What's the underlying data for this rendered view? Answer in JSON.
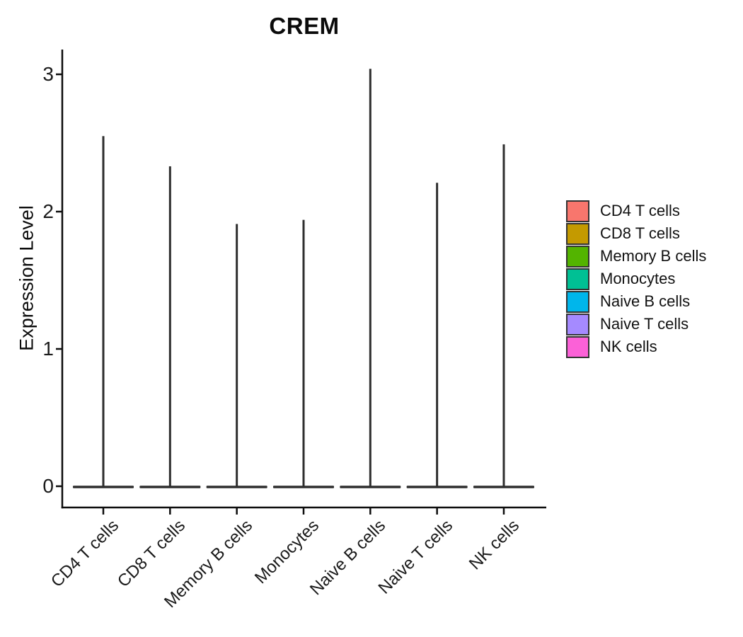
{
  "title": "CREM",
  "y_axis": {
    "label": "Expression Level",
    "ticks": [
      0,
      1,
      2,
      3
    ]
  },
  "x_axis": {
    "categories": [
      "CD4 T cells",
      "CD8 T cells",
      "Memory B cells",
      "Monocytes",
      "Naive B cells",
      "Naive T cells",
      "NK cells"
    ],
    "tick_rotation_deg": 45
  },
  "legend": {
    "position": "right",
    "items": [
      {
        "label": "CD4 T cells",
        "color": "#F8766D"
      },
      {
        "label": "CD8 T cells",
        "color": "#C49A00"
      },
      {
        "label": "Memory B cells",
        "color": "#53B400"
      },
      {
        "label": "Monocytes",
        "color": "#00C094"
      },
      {
        "label": "Naive B cells",
        "color": "#00B6EB"
      },
      {
        "label": "Naive T cells",
        "color": "#A58AFF"
      },
      {
        "label": "NK cells",
        "color": "#FB61D7"
      }
    ]
  },
  "chart_data": {
    "type": "violin",
    "title": "CREM",
    "xlabel": "",
    "ylabel": "Expression Level",
    "categories": [
      "CD4 T cells",
      "CD8 T cells",
      "Memory B cells",
      "Monocytes",
      "Naive B cells",
      "Naive T cells",
      "NK cells"
    ],
    "series": [
      {
        "name": "CD4 T cells",
        "color": "#F8766D",
        "bulk_value": 0,
        "max_expression": 2.55
      },
      {
        "name": "CD8 T cells",
        "color": "#C49A00",
        "bulk_value": 0,
        "max_expression": 2.33
      },
      {
        "name": "Memory B cells",
        "color": "#53B400",
        "bulk_value": 0,
        "max_expression": 1.91
      },
      {
        "name": "Monocytes",
        "color": "#00C094",
        "bulk_value": 0,
        "max_expression": 1.94
      },
      {
        "name": "Naive B cells",
        "color": "#00B6EB",
        "bulk_value": 0,
        "max_expression": 3.04
      },
      {
        "name": "Naive T cells",
        "color": "#A58AFF",
        "bulk_value": 0,
        "max_expression": 2.21
      },
      {
        "name": "NK cells",
        "color": "#FB61D7",
        "bulk_value": 0,
        "max_expression": 2.49
      }
    ],
    "shape_note": "Each violin collapses to a wide flat base at expression 0 with a razor-thin spike up to max_expression; outlines render dark gray.",
    "outline_color": "#2e2e2e",
    "axis_color": "#0d0d0d",
    "y_ticks": [
      0,
      1,
      2,
      3
    ],
    "ylim": [
      0,
      3.1
    ],
    "grid": false,
    "legend_position": "right"
  }
}
